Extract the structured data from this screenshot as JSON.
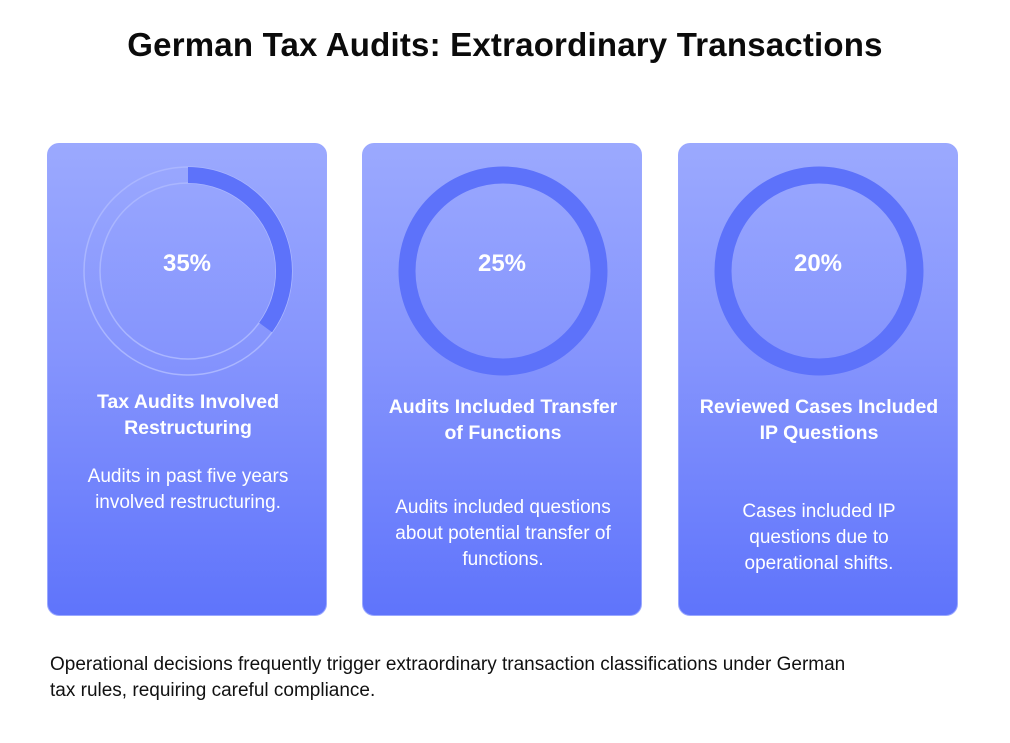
{
  "title": "German Tax Audits: Extraordinary Transactions",
  "colors": {
    "card_top": "#9ba9fe",
    "card_bottom": "#5f74fb",
    "ring_fill": "#5d72fa",
    "ring_track": "#aab6ff",
    "text_on_card": "#ffffff"
  },
  "cards": [
    {
      "percent_label": "35%",
      "value": 0.35,
      "ring_style": "thin-track",
      "heading": "Tax Audits Involved Restructuring",
      "description": "Audits in past five years involved restructuring."
    },
    {
      "percent_label": "25%",
      "value": 0.25,
      "ring_style": "solid",
      "heading": "Audits Included Transfer of Functions",
      "description": "Audits included questions about potential transfer of functions."
    },
    {
      "percent_label": "20%",
      "value": 0.2,
      "ring_style": "solid",
      "heading": "Reviewed Cases Included IP Questions",
      "description": "Cases included IP questions due to operational shifts."
    }
  ],
  "footnote": "Operational decisions frequently trigger extraordinary transaction classifications under German tax rules, requiring careful compliance."
}
